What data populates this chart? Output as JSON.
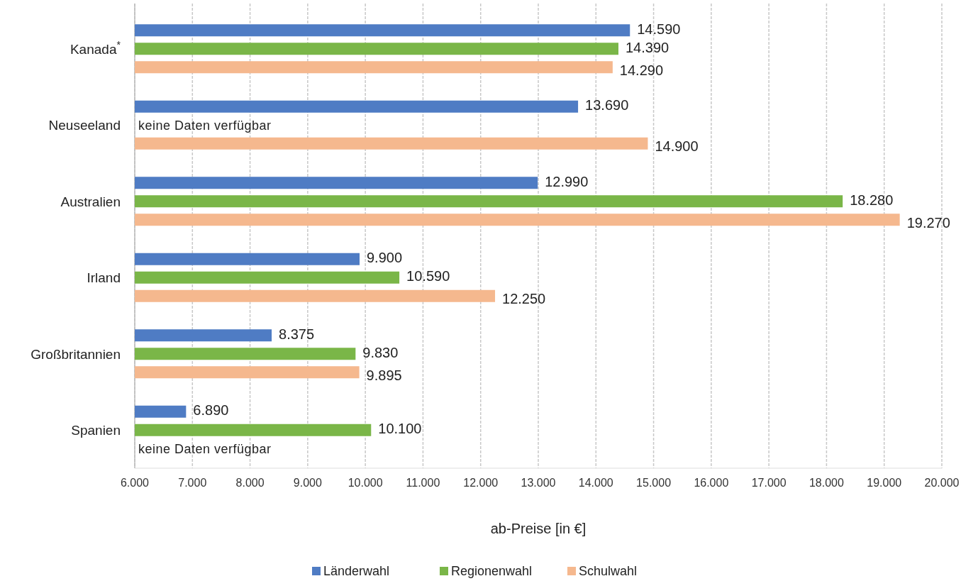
{
  "chart_data": {
    "type": "bar",
    "orientation": "horizontal",
    "xlabel": "ab-Preise [in €]",
    "categories": [
      "Kanada$^{*}$",
      "Neuseeland",
      "Australien",
      "Irland",
      "Großbritannien",
      "Spanien"
    ],
    "series": [
      {
        "name": "Länderwahl",
        "color": "#4f7cc4",
        "values": [
          14590,
          13690,
          12990,
          9900,
          8375,
          6890
        ],
        "value_labels": [
          "14.590",
          "13.690",
          "12.990",
          "9.900",
          "8.375",
          "6.890"
        ]
      },
      {
        "name": "Regionenwahl",
        "color": "#7ab648",
        "values": [
          14390,
          null,
          18280,
          10590,
          9830,
          10100
        ],
        "value_labels": [
          "14.390",
          null,
          "18.280",
          "10.590",
          "9.830",
          "10.100"
        ]
      },
      {
        "name": "Schulwahl",
        "color": "#f5b88e",
        "values": [
          14290,
          14900,
          19270,
          12250,
          9895,
          null
        ],
        "value_labels": [
          "14.290",
          "14.900",
          "19.270",
          "12.250",
          "9.895",
          null
        ]
      }
    ],
    "xlim": [
      6000,
      20000
    ],
    "xticks": [
      {
        "value": 6000,
        "label": "6.000"
      },
      {
        "value": 7000,
        "label": "7.000"
      },
      {
        "value": 8000,
        "label": "8.000"
      },
      {
        "value": 9000,
        "label": "9.000"
      },
      {
        "value": 10000,
        "label": "10.000"
      },
      {
        "value": 11000,
        "label": "11.000"
      },
      {
        "value": 12000,
        "label": "12.000"
      },
      {
        "value": 13000,
        "label": "13.000"
      },
      {
        "value": 14000,
        "label": "14.000"
      },
      {
        "value": 15000,
        "label": "15.000"
      },
      {
        "value": 16000,
        "label": "16.000"
      },
      {
        "value": 17000,
        "label": "17.000"
      },
      {
        "value": 18000,
        "label": "18.000"
      },
      {
        "value": 19000,
        "label": "19.000"
      },
      {
        "value": 20000,
        "label": "20.000"
      }
    ],
    "grid": "x",
    "legend": "bottom",
    "annotations": [
      "keine Daten verfügbar",
      "keine Daten verfügbar"
    ]
  }
}
